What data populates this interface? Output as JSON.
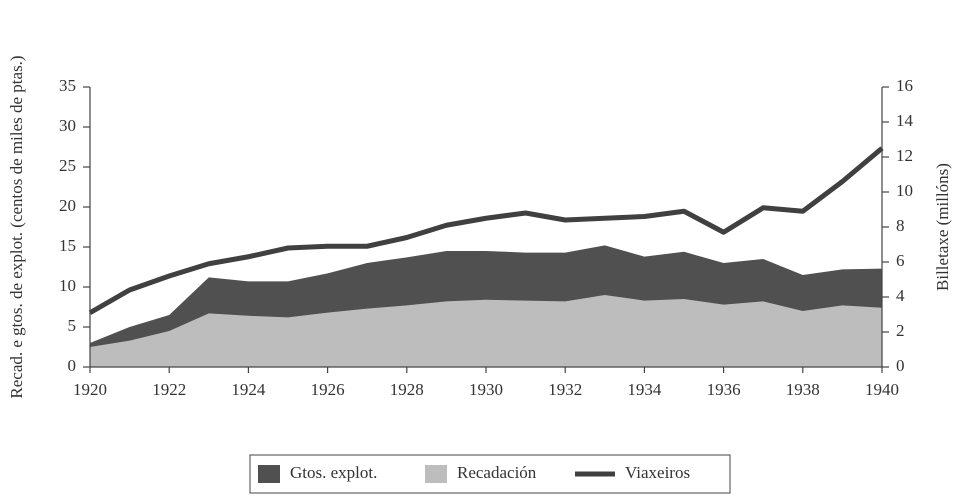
{
  "chart_data": {
    "type": "area_line",
    "x": [
      1920,
      1921,
      1922,
      1923,
      1924,
      1925,
      1926,
      1927,
      1928,
      1929,
      1930,
      1931,
      1932,
      1933,
      1934,
      1935,
      1936,
      1937,
      1938,
      1939,
      1940
    ],
    "xlim": [
      1920,
      1940
    ],
    "xticks": [
      1920,
      1922,
      1924,
      1926,
      1928,
      1930,
      1932,
      1934,
      1936,
      1938,
      1940
    ],
    "ylim": [
      0,
      35
    ],
    "yticks": [
      0,
      5,
      10,
      15,
      20,
      25,
      30,
      35
    ],
    "y2lim": [
      0,
      16
    ],
    "y2ticks": [
      0,
      2,
      4,
      6,
      8,
      10,
      12,
      14,
      16
    ],
    "ylabel": "Recad. e gtos. de explot. (centos de miles de ptas.)",
    "y2label": "Billetaxe (millóns)",
    "grid": false,
    "legend": "bottom",
    "series": [
      {
        "name": "Gtos. explot.",
        "kind": "area",
        "color": "#505050",
        "values": [
          3.0,
          5.0,
          6.5,
          11.2,
          10.7,
          10.7,
          11.7,
          13.0,
          13.7,
          14.5,
          14.5,
          14.3,
          14.3,
          15.2,
          13.8,
          14.4,
          13.0,
          13.5,
          11.5,
          12.2,
          12.3
        ]
      },
      {
        "name": "Recadación",
        "kind": "area",
        "color": "#bdbdbd",
        "values": [
          2.5,
          3.3,
          4.5,
          6.7,
          6.4,
          6.2,
          6.8,
          7.3,
          7.7,
          8.2,
          8.4,
          8.3,
          8.2,
          9.0,
          8.3,
          8.5,
          7.8,
          8.2,
          7.0,
          7.7,
          7.4
        ]
      },
      {
        "name": "Viaxeiros",
        "kind": "line",
        "color": "#404040",
        "axis": "y2",
        "values": [
          3.1,
          4.4,
          5.2,
          5.9,
          6.3,
          6.8,
          6.9,
          6.9,
          7.4,
          8.1,
          8.5,
          8.8,
          8.4,
          8.5,
          8.6,
          8.9,
          7.7,
          9.1,
          8.9,
          10.6,
          12.5
        ]
      }
    ]
  }
}
